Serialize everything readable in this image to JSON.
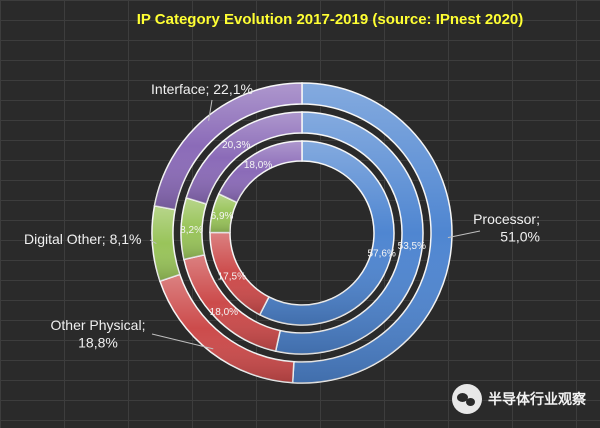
{
  "chart_data": {
    "type": "donut",
    "title": "IP Category Evolution 2017-2019 (source: IPnest  2020)",
    "categories": [
      "Processor",
      "Other Physical",
      "Digital Other",
      "Interface"
    ],
    "colors": {
      "Processor": "#4f86d1",
      "Other Physical": "#cc4b4b",
      "Digital Other": "#99c45a",
      "Interface": "#8b6bb8"
    },
    "rings": [
      {
        "position": "inner",
        "values": [
          57.6,
          17.5,
          6.9,
          18.0
        ],
        "labels": [
          "57,6%",
          "17,5%",
          "6,9%",
          "18,0%"
        ]
      },
      {
        "position": "middle",
        "values": [
          53.5,
          18.0,
          8.2,
          20.3
        ],
        "labels": [
          "53,5%",
          "18,0%",
          "8,2%",
          "20,3%"
        ]
      },
      {
        "position": "outer",
        "values": [
          51.0,
          18.8,
          8.1,
          22.1
        ],
        "labels": [
          "Processor;\n51,0%",
          "Other Physical;\n18,8%",
          "Digital Other; 8,1%",
          "Interface; 22,1%"
        ]
      }
    ]
  },
  "watermark": "半导体行业观察"
}
